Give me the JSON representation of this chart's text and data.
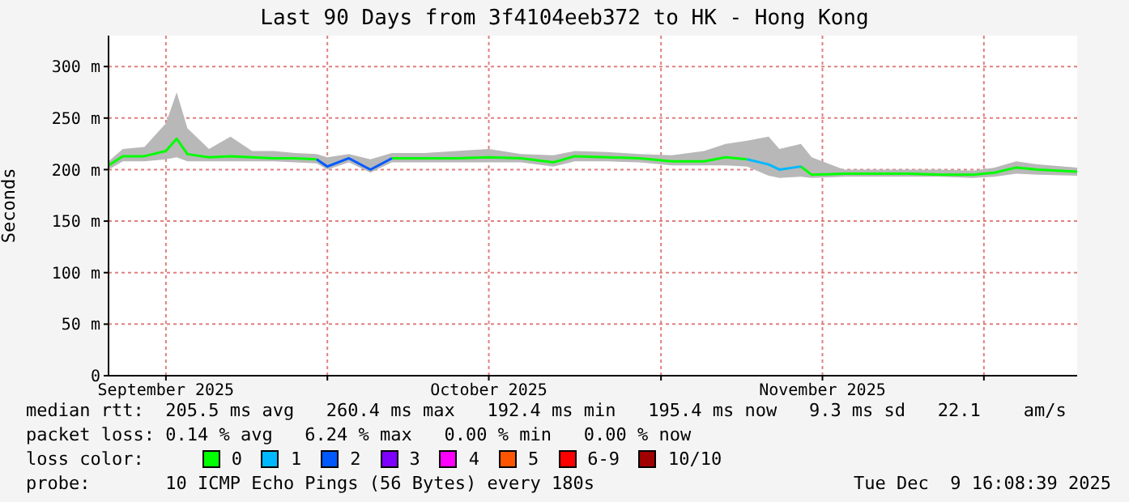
{
  "chart_data": {
    "type": "line",
    "title": "Last 90 Days from 3f4104eeb372 to HK - Hong Kong",
    "ylabel": "Seconds",
    "x": [
      "2025-09-10T16:00",
      "2025-09-12",
      "2025-09-14",
      "2025-09-16",
      "2025-09-17",
      "2025-09-18",
      "2025-09-20",
      "2025-09-22",
      "2025-09-24",
      "2025-09-26",
      "2025-09-28",
      "2025-09-30",
      "2025-10-01",
      "2025-10-03",
      "2025-10-05",
      "2025-10-07",
      "2025-10-10",
      "2025-10-13",
      "2025-10-16",
      "2025-10-19",
      "2025-10-22",
      "2025-10-24",
      "2025-10-27",
      "2025-10-30",
      "2025-11-02",
      "2025-11-05",
      "2025-11-07",
      "2025-11-09",
      "2025-11-11",
      "2025-11-12",
      "2025-11-14",
      "2025-11-15",
      "2025-11-18",
      "2025-11-21",
      "2025-11-24",
      "2025-11-27",
      "2025-11-30",
      "2025-12-02",
      "2025-12-04",
      "2025-12-06",
      "2025-12-09T16:00"
    ],
    "series": [
      {
        "name": "0",
        "color": "#00ff00",
        "values": [
          204,
          213,
          213,
          218,
          230,
          215,
          212,
          213,
          212,
          211,
          211,
          210,
          null,
          null,
          null,
          211,
          211,
          211,
          212,
          211,
          207,
          213,
          212,
          211,
          208,
          208,
          212,
          210,
          null,
          null,
          203,
          195,
          196,
          196,
          196,
          195,
          195,
          197,
          202,
          200,
          198
        ],
        "lower": [
          200,
          208,
          208,
          210,
          212,
          208,
          208,
          208,
          208,
          208,
          207,
          206,
          200,
          207,
          197,
          207,
          207,
          207,
          207,
          207,
          203,
          208,
          208,
          207,
          204,
          204,
          204,
          203,
          194,
          192,
          193,
          192,
          193,
          193,
          193,
          193,
          192,
          193,
          196,
          195,
          194
        ],
        "upper": [
          208,
          220,
          222,
          245,
          275,
          240,
          220,
          232,
          218,
          218,
          216,
          215,
          212,
          215,
          210,
          216,
          216,
          218,
          220,
          215,
          214,
          218,
          217,
          215,
          214,
          218,
          225,
          228,
          232,
          220,
          225,
          212,
          200,
          200,
          200,
          200,
          199,
          202,
          208,
          205,
          202
        ]
      },
      {
        "name": "1",
        "color": "#00b8ff",
        "values": [
          null,
          null,
          null,
          null,
          null,
          null,
          null,
          null,
          null,
          null,
          null,
          null,
          null,
          null,
          null,
          null,
          null,
          null,
          null,
          null,
          null,
          null,
          null,
          null,
          null,
          null,
          null,
          210,
          205,
          200,
          203,
          null,
          null,
          null,
          null,
          null,
          null,
          null,
          null,
          null,
          null
        ]
      },
      {
        "name": "2",
        "color": "#0059ff",
        "values": [
          null,
          null,
          null,
          null,
          null,
          null,
          null,
          null,
          null,
          null,
          null,
          210,
          203,
          211,
          200,
          211,
          null,
          null,
          null,
          null,
          null,
          null,
          null,
          null,
          null,
          null,
          null,
          null,
          null,
          null,
          null,
          null,
          null,
          null,
          null,
          null,
          null,
          null,
          null,
          null,
          null
        ]
      },
      {
        "name": "3",
        "color": "#7e00ff",
        "values": [
          null,
          null,
          null,
          null,
          null,
          null,
          null,
          null,
          null,
          null,
          null,
          null,
          null,
          null,
          null,
          null,
          null,
          null,
          null,
          null,
          null,
          null,
          null,
          null,
          null,
          null,
          null,
          null,
          null,
          null,
          null,
          null,
          null,
          null,
          null,
          null,
          null,
          null,
          null,
          null,
          null
        ]
      },
      {
        "name": "4",
        "color": "#ff00ff",
        "values": [
          null,
          null,
          null,
          null,
          null,
          null,
          null,
          null,
          null,
          null,
          null,
          null,
          null,
          null,
          null,
          null,
          null,
          null,
          null,
          null,
          null,
          null,
          null,
          null,
          null,
          null,
          null,
          null,
          null,
          null,
          null,
          null,
          null,
          null,
          null,
          null,
          null,
          null,
          null,
          null,
          null
        ]
      },
      {
        "name": "5",
        "color": "#ff5500",
        "values": [
          null,
          null,
          null,
          null,
          null,
          null,
          null,
          null,
          null,
          null,
          null,
          null,
          null,
          null,
          null,
          null,
          null,
          null,
          null,
          null,
          null,
          null,
          null,
          null,
          null,
          null,
          null,
          null,
          null,
          null,
          null,
          null,
          null,
          null,
          null,
          null,
          null,
          null,
          null,
          null,
          null
        ]
      },
      {
        "name": "6-9",
        "color": "#ff0000",
        "values": [
          null,
          null,
          null,
          null,
          null,
          null,
          null,
          null,
          null,
          null,
          null,
          null,
          null,
          null,
          null,
          null,
          null,
          null,
          null,
          null,
          null,
          null,
          null,
          null,
          null,
          null,
          null,
          null,
          null,
          null,
          null,
          null,
          null,
          null,
          null,
          null,
          null,
          null,
          null,
          null,
          null
        ]
      },
      {
        "name": "10/10",
        "color": "#a00000",
        "values": [
          null,
          null,
          null,
          null,
          null,
          null,
          null,
          null,
          null,
          null,
          null,
          null,
          null,
          null,
          null,
          null,
          null,
          null,
          null,
          null,
          null,
          null,
          null,
          null,
          null,
          null,
          null,
          null,
          null,
          null,
          null,
          null,
          null,
          null,
          null,
          null,
          null,
          null,
          null,
          null,
          null
        ]
      }
    ],
    "xlim": [
      "2025-09-10T16:00",
      "2025-12-09T16:00"
    ],
    "xticks": [
      {
        "value": "2025-09-16",
        "label": "September 2025"
      },
      {
        "value": "2025-10-01",
        "label": null
      },
      {
        "value": "2025-10-16",
        "label": "October 2025"
      },
      {
        "value": "2025-11-01",
        "label": null
      },
      {
        "value": "2025-11-16",
        "label": "November 2025"
      },
      {
        "value": "2025-12-01",
        "label": null
      }
    ],
    "ylim": [
      0,
      330
    ],
    "yticks": [
      0,
      {
        "value": 50,
        "label": "50 m"
      },
      {
        "value": 100,
        "label": "100 m"
      },
      {
        "value": 150,
        "label": "150 m"
      },
      {
        "value": 200,
        "label": "200 m"
      },
      {
        "value": 250,
        "label": "250 m"
      },
      {
        "value": 300,
        "label": "300 m"
      }
    ],
    "grid": true,
    "legend": "bottom",
    "legend_title": "loss color:",
    "marker": "none",
    "line_style": "solid",
    "annotations": [
      "median rtt:  205.5 ms avg   260.4 ms max   192.4 ms min   195.4 ms now   9.3 ms sd   22.1    am/s",
      "packet loss: 0.14 % avg   6.24 % max   0.00 % min   0.00 % now",
      "probe:       10 ICMP Echo Pings (56 Bytes) every 180s",
      "Tue Dec  9 16:08:39 2025"
    ]
  }
}
